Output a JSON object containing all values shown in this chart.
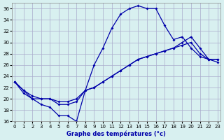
{
  "title": "Graphe des températures (°c)",
  "background_color": "#d8f0f0",
  "line_color": "#0000aa",
  "grid_color": "#aaaacc",
  "xlim": [
    0,
    23
  ],
  "ylim": [
    16,
    37
  ],
  "yticks": [
    16,
    18,
    20,
    22,
    24,
    26,
    28,
    30,
    32,
    34,
    36
  ],
  "xticks": [
    0,
    1,
    2,
    3,
    4,
    5,
    6,
    7,
    8,
    9,
    10,
    11,
    12,
    13,
    14,
    15,
    16,
    17,
    18,
    19,
    20,
    21,
    22,
    23
  ],
  "curve1_x": [
    0,
    1,
    2,
    3,
    4,
    5,
    6,
    7,
    8,
    9,
    10,
    11,
    12,
    13,
    14,
    15,
    16,
    17,
    18,
    19,
    20,
    21,
    22,
    23
  ],
  "curve1_y": [
    23,
    21,
    20,
    19,
    18.5,
    17,
    17,
    16,
    21.5,
    26,
    29,
    32.5,
    35,
    36,
    36.5,
    36,
    36,
    33,
    30.5,
    31,
    29,
    27.5,
    27,
    27
  ],
  "curve2_x": [
    0,
    1,
    2,
    3,
    4,
    5,
    6,
    7,
    8,
    9,
    10,
    11,
    12,
    13,
    14,
    15,
    16,
    17,
    18,
    19,
    20,
    21,
    22,
    23
  ],
  "curve2_y": [
    23,
    21.5,
    20.5,
    20,
    20,
    19,
    19,
    19.5,
    21.5,
    22,
    23,
    24,
    25,
    26,
    27,
    27.5,
    28,
    28.5,
    29,
    29.5,
    30,
    28,
    27,
    26.5
  ],
  "curve3_x": [
    0,
    1,
    2,
    3,
    4,
    5,
    6,
    7,
    8,
    9,
    10,
    11,
    12,
    13,
    14,
    15,
    16,
    17,
    18,
    19,
    20,
    21,
    22,
    23
  ],
  "curve3_y": [
    23,
    21.5,
    20,
    20,
    20,
    19.5,
    19.5,
    20,
    21.5,
    22,
    23,
    24,
    25,
    26,
    27,
    27.5,
    28,
    28.5,
    29,
    30,
    31,
    29,
    27,
    27
  ]
}
